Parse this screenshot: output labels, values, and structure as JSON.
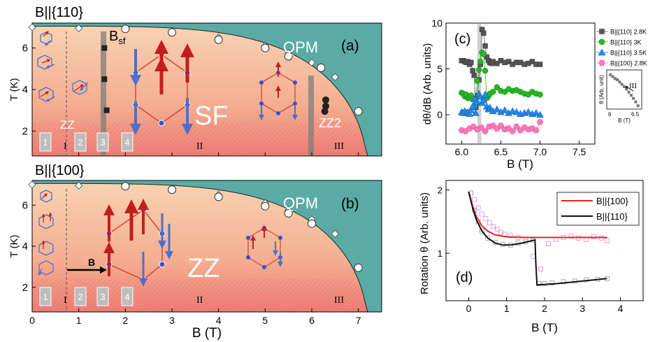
{
  "panel_a": {
    "heading": "B||{110}",
    "tag": "(a)",
    "phase_qpm": "QPM",
    "phase_sf": "SF",
    "phase_zz": "ZZ",
    "phase_zz2": "ZZ2",
    "bsf_main": "B",
    "bsf_sub": "sf",
    "regions": [
      "I",
      "II",
      "III"
    ],
    "boxes": [
      "1",
      "2",
      "3",
      "4"
    ]
  },
  "panel_b": {
    "heading": "B||{100}",
    "tag": "(b)",
    "phase_qpm": "QPM",
    "phase_zz": "ZZ",
    "field_arrow_label": "B",
    "regions": [
      "I",
      "II",
      "III"
    ],
    "boxes": [
      "1",
      "2",
      "3",
      "4"
    ]
  },
  "panel_c": {
    "tag": "(c)"
  },
  "panel_d": {
    "tag": "(d)"
  },
  "colors": {
    "qpm": "#5aaba6",
    "ordered_top": "#f6c7a4",
    "ordered_bottom": "#f08a80",
    "lattice": "#d84a3a",
    "spin_red": "#c62020",
    "spin_blue": "#5070c8"
  },
  "chart_data": [
    {
      "type": "scatter",
      "title": "(a)",
      "xlabel": "B (T)",
      "ylabel": "T (K)",
      "xlim": [
        0,
        7.5
      ],
      "ylim": [
        0.8,
        7.2
      ],
      "yticks": [
        2,
        4,
        6
      ],
      "series": [
        {
          "marker": "diamond",
          "x": [
            0,
            1,
            2,
            3,
            4,
            5,
            5.5,
            6,
            6.5
          ],
          "y": [
            7.0,
            6.95,
            6.95,
            6.8,
            6.5,
            6.1,
            5.75,
            5.3,
            4.6
          ]
        },
        {
          "marker": "circle-open",
          "x": [
            2,
            3,
            4,
            5,
            5.5,
            6.2,
            7.0
          ],
          "y": [
            6.92,
            6.75,
            6.4,
            6.0,
            5.6,
            5.05,
            2.95
          ]
        },
        {
          "marker": "square-filled",
          "x": [
            1.55,
            1.55,
            1.6
          ],
          "y": [
            6.0,
            4.5,
            3.0
          ]
        },
        {
          "marker": "circle-filled",
          "x": [
            6.3,
            6.3,
            6.28
          ],
          "y": [
            3.5,
            3.2,
            2.95
          ]
        }
      ]
    },
    {
      "type": "scatter",
      "title": "(b)",
      "xlabel": "B (T)",
      "ylabel": "T (K)",
      "xlim": [
        0,
        7.5
      ],
      "ylim": [
        0.8,
        7.2
      ],
      "xticks": [
        0,
        1,
        2,
        3,
        4,
        5,
        6,
        7
      ],
      "yticks": [
        2,
        4,
        6
      ],
      "series": [
        {
          "marker": "diamond",
          "x": [
            0,
            1,
            2,
            3,
            4,
            5,
            5.5,
            6,
            6.5
          ],
          "y": [
            7.0,
            6.95,
            6.95,
            6.8,
            6.5,
            6.1,
            5.75,
            5.3,
            4.6
          ]
        },
        {
          "marker": "circle-open",
          "x": [
            2,
            3,
            4,
            5,
            5.5,
            6,
            7.0
          ],
          "y": [
            6.92,
            6.75,
            6.4,
            5.95,
            5.6,
            5.1,
            2.95
          ]
        }
      ]
    },
    {
      "type": "line",
      "title": "(c)",
      "xlabel": "B (T)",
      "ylabel": "dθ/dB (Arb. units)",
      "xlim": [
        5.8,
        7.7
      ],
      "ylim": [
        -3.2,
        10
      ],
      "xticks": [
        6.0,
        6.5,
        7.0,
        7.5
      ],
      "yticks": [
        0,
        5,
        10
      ],
      "series": [
        {
          "name": "B||{110} 2.8K",
          "marker": "square",
          "color": "#555555",
          "x": [
            6.0,
            6.02,
            6.04,
            6.06,
            6.08,
            6.1,
            6.12,
            6.14,
            6.16,
            6.18,
            6.2,
            6.22,
            6.24,
            6.26,
            6.28,
            6.3,
            6.32,
            6.34,
            6.36,
            6.38,
            6.4,
            6.45,
            6.5,
            6.55,
            6.6,
            6.65,
            6.7,
            6.75,
            6.8,
            6.85,
            6.9,
            6.95,
            7.0
          ],
          "y": [
            5.9,
            5.9,
            5.8,
            5.7,
            5.8,
            5.5,
            5.7,
            4.8,
            4.3,
            0.8,
            2.1,
            3.8,
            5.5,
            9.3,
            8.9,
            7.5,
            6.3,
            5.9,
            5.7,
            5.6,
            5.8,
            5.6,
            5.9,
            5.7,
            5.8,
            5.5,
            5.7,
            5.7,
            5.5,
            5.6,
            5.8,
            5.5,
            5.5
          ]
        },
        {
          "name": "B||{110} 3K",
          "marker": "circle",
          "color": "#22bb22",
          "x": [
            6.0,
            6.02,
            6.04,
            6.06,
            6.08,
            6.1,
            6.12,
            6.14,
            6.16,
            6.18,
            6.2,
            6.22,
            6.24,
            6.26,
            6.28,
            6.3,
            6.32,
            6.34,
            6.36,
            6.4,
            6.45,
            6.5,
            6.55,
            6.6,
            6.65,
            6.7,
            6.75,
            6.8,
            6.85,
            6.9,
            6.95,
            7.0
          ],
          "y": [
            2.4,
            2.3,
            2.0,
            2.2,
            1.8,
            1.9,
            2.1,
            1.7,
            1.0,
            1.4,
            3.7,
            4.9,
            5.8,
            6.8,
            6.6,
            4.8,
            1.8,
            2.0,
            2.3,
            2.5,
            3.0,
            2.6,
            2.5,
            2.8,
            2.6,
            2.7,
            2.5,
            2.3,
            2.2,
            2.5,
            2.3,
            2.2
          ]
        },
        {
          "name": "B||{110} 3.5K",
          "marker": "triangle",
          "color": "#2288ee",
          "x": [
            6.0,
            6.02,
            6.04,
            6.06,
            6.08,
            6.1,
            6.12,
            6.14,
            6.16,
            6.18,
            6.2,
            6.22,
            6.24,
            6.26,
            6.28,
            6.3,
            6.32,
            6.34,
            6.36,
            6.4,
            6.45,
            6.5,
            6.55,
            6.6,
            6.65,
            6.7,
            6.75,
            6.8,
            6.85,
            6.9,
            6.95,
            7.0
          ],
          "y": [
            0.3,
            0.2,
            0.4,
            0.2,
            0.3,
            0.1,
            0.5,
            0.9,
            1.7,
            0.2,
            1.4,
            2.3,
            2.0,
            1.3,
            1.6,
            2.2,
            0.9,
            0.6,
            0.8,
            0.4,
            0.6,
            0.3,
            0.5,
            0.2,
            0.4,
            0.3,
            0.1,
            0.2,
            0.3,
            0.1,
            0.2,
            0.0
          ]
        },
        {
          "name": "B||{100} 2.8K",
          "marker": "hexagon",
          "color": "#ff77bb",
          "x": [
            6.0,
            6.05,
            6.1,
            6.15,
            6.2,
            6.25,
            6.3,
            6.35,
            6.4,
            6.45,
            6.5,
            6.55,
            6.6,
            6.65,
            6.7,
            6.75,
            6.8,
            6.85,
            6.9,
            6.95,
            7.0
          ],
          "y": [
            -1.7,
            -1.8,
            -1.5,
            -1.3,
            -1.6,
            -1.4,
            -1.8,
            -1.3,
            -1.2,
            -1.5,
            -1.2,
            -1.6,
            -1.5,
            -1.8,
            -1.3,
            -1.7,
            -1.4,
            -1.6,
            -1.5,
            -1.7,
            -0.8
          ]
        }
      ],
      "inset": {
        "title": "III",
        "xlabel": "B (T)",
        "ylabel": "θ (Arb. unit)",
        "xticks": [
          6.0,
          6.5
        ],
        "x": [
          6.0,
          6.05,
          6.1,
          6.15,
          6.2,
          6.25,
          6.3,
          6.35,
          6.4,
          6.45,
          6.5,
          6.55,
          6.6
        ],
        "y": [
          0.95,
          0.9,
          0.85,
          0.82,
          0.76,
          0.7,
          0.64,
          0.58,
          0.5,
          0.42,
          0.34,
          0.25,
          0.15
        ]
      }
    },
    {
      "type": "line",
      "title": "(d)",
      "xlabel": "B (T)",
      "ylabel": "Rotation θ (Arb. units)",
      "xlim": [
        -0.6,
        4.6
      ],
      "ylim": [
        0.25,
        2.15
      ],
      "xticks": [
        0,
        1,
        2,
        3,
        4
      ],
      "yticks": [
        1,
        2
      ],
      "series": [
        {
          "name": "B||{100}",
          "color": "#ee2222",
          "x": [
            0.0,
            0.1,
            0.2,
            0.35,
            0.5,
            0.7,
            1.0,
            1.5,
            2.0,
            2.5,
            3.0,
            3.65
          ],
          "y": [
            1.97,
            1.75,
            1.58,
            1.43,
            1.35,
            1.29,
            1.26,
            1.25,
            1.25,
            1.25,
            1.25,
            1.25
          ]
        },
        {
          "name": "B||{110}",
          "color": "#111111",
          "x": [
            0.0,
            0.1,
            0.2,
            0.35,
            0.5,
            0.7,
            0.9,
            1.1,
            1.4,
            1.75,
            1.77,
            1.8,
            2.3,
            3.0,
            3.65
          ],
          "y": [
            1.97,
            1.72,
            1.53,
            1.35,
            1.24,
            1.16,
            1.13,
            1.13,
            1.16,
            1.21,
            0.85,
            0.5,
            0.52,
            0.56,
            0.6
          ]
        },
        {
          "name": "",
          "marker": "square-open",
          "color": "#dd88dd",
          "x": [
            0.05,
            0.15,
            0.25,
            0.35,
            0.45,
            0.55,
            0.65,
            0.75,
            0.85,
            0.95,
            1.1,
            1.3,
            1.5,
            1.7,
            1.9,
            2.1,
            2.3,
            2.5,
            2.7,
            2.9,
            3.1,
            3.3,
            3.5,
            3.65
          ],
          "y": [
            1.95,
            1.85,
            1.72,
            1.62,
            1.55,
            1.48,
            1.42,
            1.38,
            1.33,
            1.3,
            1.28,
            1.25,
            1.22,
            0.95,
            0.75,
            1.15,
            1.22,
            1.25,
            1.27,
            1.24,
            1.22,
            1.26,
            1.24,
            1.2
          ]
        },
        {
          "name": "",
          "marker": "square-open",
          "color": "#999999",
          "x": [
            0.05,
            0.15,
            0.25,
            0.35,
            0.5,
            0.7,
            0.9,
            1.1,
            1.3,
            1.5,
            1.7,
            1.85,
            2.0,
            2.2,
            2.5,
            2.8,
            3.1,
            3.4,
            3.65
          ],
          "y": [
            1.95,
            1.68,
            1.5,
            1.35,
            1.24,
            1.17,
            1.14,
            1.13,
            1.16,
            1.18,
            1.2,
            0.52,
            0.52,
            0.53,
            0.55,
            0.56,
            0.58,
            0.59,
            0.6
          ]
        }
      ]
    }
  ]
}
